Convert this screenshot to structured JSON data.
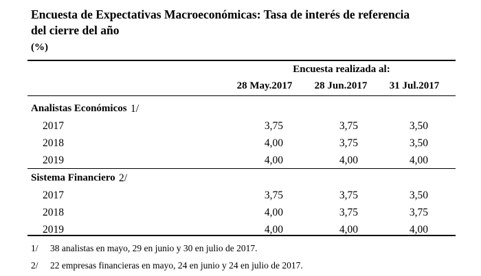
{
  "title": [
    "Encuesta de Expectativas Macroeconómicas: Tasa de interés de referencia",
    "del cierre del año"
  ],
  "unit": "(%)",
  "table": {
    "group_header": "Encuesta realizada al:",
    "columns": [
      "28 May.2017",
      "28 Jun.2017",
      "31 Jul.2017"
    ],
    "sections": [
      {
        "label": "Analistas Económicos",
        "note": "1/",
        "rows": [
          {
            "label": "2017",
            "values": [
              "3,75",
              "3,75",
              "3,50"
            ]
          },
          {
            "label": "2018",
            "values": [
              "4,00",
              "3,75",
              "3,50"
            ]
          },
          {
            "label": "2019",
            "values": [
              "4,00",
              "4,00",
              "4,00"
            ]
          }
        ]
      },
      {
        "label": "Sistema Financiero",
        "note": "2/",
        "rows": [
          {
            "label": "2017",
            "values": [
              "3,75",
              "3,75",
              "3,50"
            ]
          },
          {
            "label": "2018",
            "values": [
              "4,00",
              "3,75",
              "3,75"
            ]
          },
          {
            "label": "2019",
            "values": [
              "4,00",
              "4,00",
              "4,00"
            ]
          }
        ]
      }
    ]
  },
  "footnotes": [
    {
      "marker": "1/",
      "text": "38 analistas en mayo, 29 en junio y 30 en julio de 2017."
    },
    {
      "marker": "2/",
      "text": "22 empresas financieras en mayo, 24 en junio y 24 en julio de 2017."
    }
  ]
}
